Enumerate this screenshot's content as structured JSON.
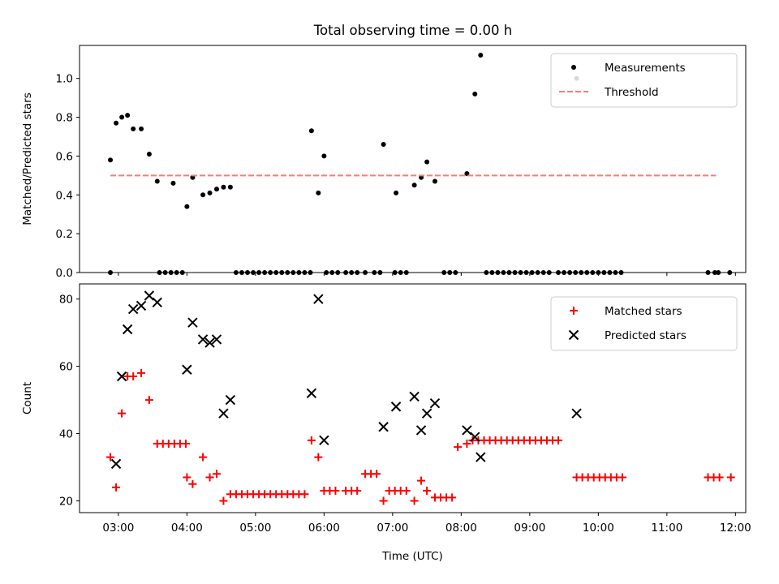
{
  "figure": {
    "title": "Total observing time = 0.00 h"
  },
  "colors": {
    "measurement": "#000000",
    "threshold": "#ff7777",
    "matched": "#ff0000",
    "predicted": "#000000"
  },
  "chart_data": [
    {
      "type": "scatter",
      "title": "Total observing time = 0.00 h",
      "xlabel": "",
      "ylabel": "Matched/Predicted stars",
      "xlim": [
        "02:26",
        "12:09"
      ],
      "ylim": [
        0,
        1.17
      ],
      "yticks": [
        0.0,
        0.2,
        0.4,
        0.6,
        0.8,
        1.0
      ],
      "ytick_labels": [
        "0.0",
        "0.2",
        "0.4",
        "0.6",
        "0.8",
        "1.0"
      ],
      "grid": false,
      "legend": {
        "placement": "top-right",
        "entries": [
          "Measurements",
          "Threshold"
        ]
      },
      "series": [
        {
          "name": "Measurements",
          "marker": "dot",
          "x": [
            "02:53",
            "02:58",
            "03:03",
            "03:08",
            "03:13",
            "03:20",
            "03:27",
            "03:34",
            "03:48",
            "04:00",
            "04:05",
            "04:14",
            "04:20",
            "04:26",
            "04:32",
            "04:38",
            "05:49",
            "05:55",
            "06:00",
            "06:52",
            "07:03",
            "07:19",
            "07:25",
            "07:30",
            "07:37",
            "08:05",
            "08:12",
            "08:17",
            "09:41",
            "02:53",
            "03:36",
            "03:41",
            "03:46",
            "03:51",
            "03:56",
            "04:43",
            "04:48",
            "04:53",
            "04:58",
            "05:03",
            "05:08",
            "05:13",
            "05:18",
            "05:23",
            "05:28",
            "05:33",
            "05:38",
            "05:43",
            "05:48",
            "06:02",
            "06:07",
            "06:12",
            "06:19",
            "06:24",
            "06:29",
            "06:36",
            "06:44",
            "06:49",
            "07:02",
            "07:07",
            "07:12",
            "07:45",
            "07:50",
            "07:55",
            "08:22",
            "08:27",
            "08:32",
            "08:37",
            "08:42",
            "08:47",
            "08:52",
            "08:57",
            "09:02",
            "09:07",
            "09:12",
            "09:17",
            "09:25",
            "09:30",
            "09:35",
            "09:40",
            "09:45",
            "09:50",
            "09:55",
            "10:00",
            "10:05",
            "10:10",
            "10:15",
            "10:20",
            "11:36",
            "11:42",
            "11:45",
            "11:55"
          ],
          "y": [
            0.0,
            0.77,
            0.8,
            0.81,
            0.74,
            0.74,
            0.61,
            0.47,
            0.46,
            0.34,
            0.49,
            0.4,
            0.41,
            0.43,
            0.44,
            0.44,
            0.73,
            0.41,
            0.6,
            0.66,
            0.41,
            0.45,
            0.49,
            0.57,
            0.47,
            0.51,
            0.92,
            1.12,
            1.0,
            0.58,
            0.0,
            0.0,
            0.0,
            0.0,
            0.0,
            0.0,
            0.0,
            0.0,
            0.0,
            0.0,
            0.0,
            0.0,
            0.0,
            0.0,
            0.0,
            0.0,
            0.0,
            0.0,
            0.0,
            0.0,
            0.0,
            0.0,
            0.0,
            0.0,
            0.0,
            0.0,
            0.0,
            0.0,
            0.0,
            0.0,
            0.0,
            0.0,
            0.0,
            0.0,
            0.0,
            0.0,
            0.0,
            0.0,
            0.0,
            0.0,
            0.0,
            0.0,
            0.0,
            0.0,
            0.0,
            0.0,
            0.0,
            0.0,
            0.0,
            0.0,
            0.0,
            0.0,
            0.0,
            0.0,
            0.0,
            0.0,
            0.0,
            0.0,
            0.0,
            0.0,
            0.0,
            0.0
          ]
        },
        {
          "name": "Threshold",
          "style": "dashed",
          "x": [
            "02:53",
            "11:43"
          ],
          "y": [
            0.5,
            0.5
          ]
        }
      ]
    },
    {
      "type": "scatter",
      "title": "",
      "xlabel": "Time (UTC)",
      "ylabel": "Count",
      "xlim": [
        "02:26",
        "12:09"
      ],
      "ylim": [
        16.5,
        84.5
      ],
      "xticks": [
        "03:00",
        "04:00",
        "05:00",
        "06:00",
        "07:00",
        "08:00",
        "09:00",
        "10:00",
        "11:00",
        "12:00"
      ],
      "yticks": [
        20,
        40,
        60,
        80
      ],
      "ytick_labels": [
        "20",
        "40",
        "60",
        "80"
      ],
      "grid": false,
      "legend": {
        "placement": "top-right",
        "entries": [
          "Matched stars",
          "Predicted stars"
        ]
      },
      "series": [
        {
          "name": "Matched stars",
          "marker": "plus",
          "x": [
            "02:53",
            "02:58",
            "03:03",
            "03:08",
            "03:13",
            "03:20",
            "03:27",
            "03:34",
            "03:39",
            "03:44",
            "03:49",
            "03:54",
            "03:59",
            "04:00",
            "04:05",
            "04:14",
            "04:20",
            "04:26",
            "04:32",
            "04:38",
            "04:43",
            "04:48",
            "04:53",
            "04:58",
            "05:03",
            "05:08",
            "05:13",
            "05:18",
            "05:23",
            "05:28",
            "05:33",
            "05:38",
            "05:43",
            "05:49",
            "05:55",
            "06:00",
            "06:05",
            "06:10",
            "06:19",
            "06:24",
            "06:29",
            "06:36",
            "06:41",
            "06:46",
            "06:52",
            "06:57",
            "07:02",
            "07:07",
            "07:12",
            "07:19",
            "07:25",
            "07:30",
            "07:37",
            "07:42",
            "07:47",
            "07:52",
            "07:57",
            "08:05",
            "08:10",
            "08:15",
            "08:20",
            "08:25",
            "08:30",
            "08:35",
            "08:40",
            "08:45",
            "08:50",
            "08:55",
            "09:00",
            "09:05",
            "09:10",
            "09:15",
            "09:20",
            "09:25",
            "09:41",
            "09:46",
            "09:51",
            "09:56",
            "10:01",
            "10:06",
            "10:11",
            "10:16",
            "10:21",
            "11:36",
            "11:41",
            "11:46",
            "11:56"
          ],
          "y": [
            33,
            24,
            46,
            57,
            57,
            58,
            50,
            37,
            37,
            37,
            37,
            37,
            37,
            27,
            25,
            33,
            27,
            28,
            20,
            22,
            22,
            22,
            22,
            22,
            22,
            22,
            22,
            22,
            22,
            22,
            22,
            22,
            22,
            38,
            33,
            23,
            23,
            23,
            23,
            23,
            23,
            28,
            28,
            28,
            20,
            23,
            23,
            23,
            23,
            20,
            26,
            23,
            21,
            21,
            21,
            21,
            36,
            37,
            38,
            38,
            38,
            38,
            38,
            38,
            38,
            38,
            38,
            38,
            38,
            38,
            38,
            38,
            38,
            38,
            27,
            27,
            27,
            27,
            27,
            27,
            27,
            27,
            27,
            27,
            27,
            27,
            27
          ]
        },
        {
          "name": "Predicted stars",
          "marker": "x",
          "x": [
            "02:58",
            "03:03",
            "03:08",
            "03:13",
            "03:20",
            "03:27",
            "03:34",
            "04:00",
            "04:05",
            "04:14",
            "04:20",
            "04:26",
            "04:32",
            "04:38",
            "05:49",
            "05:55",
            "06:00",
            "06:52",
            "07:03",
            "07:19",
            "07:25",
            "07:30",
            "07:37",
            "08:05",
            "08:12",
            "08:17",
            "09:41"
          ],
          "y": [
            31,
            57,
            71,
            77,
            78,
            81,
            79,
            59,
            73,
            68,
            67,
            68,
            46,
            50,
            52,
            80,
            38,
            42,
            48,
            51,
            41,
            46,
            49,
            41,
            39,
            33,
            46
          ]
        }
      ]
    }
  ]
}
